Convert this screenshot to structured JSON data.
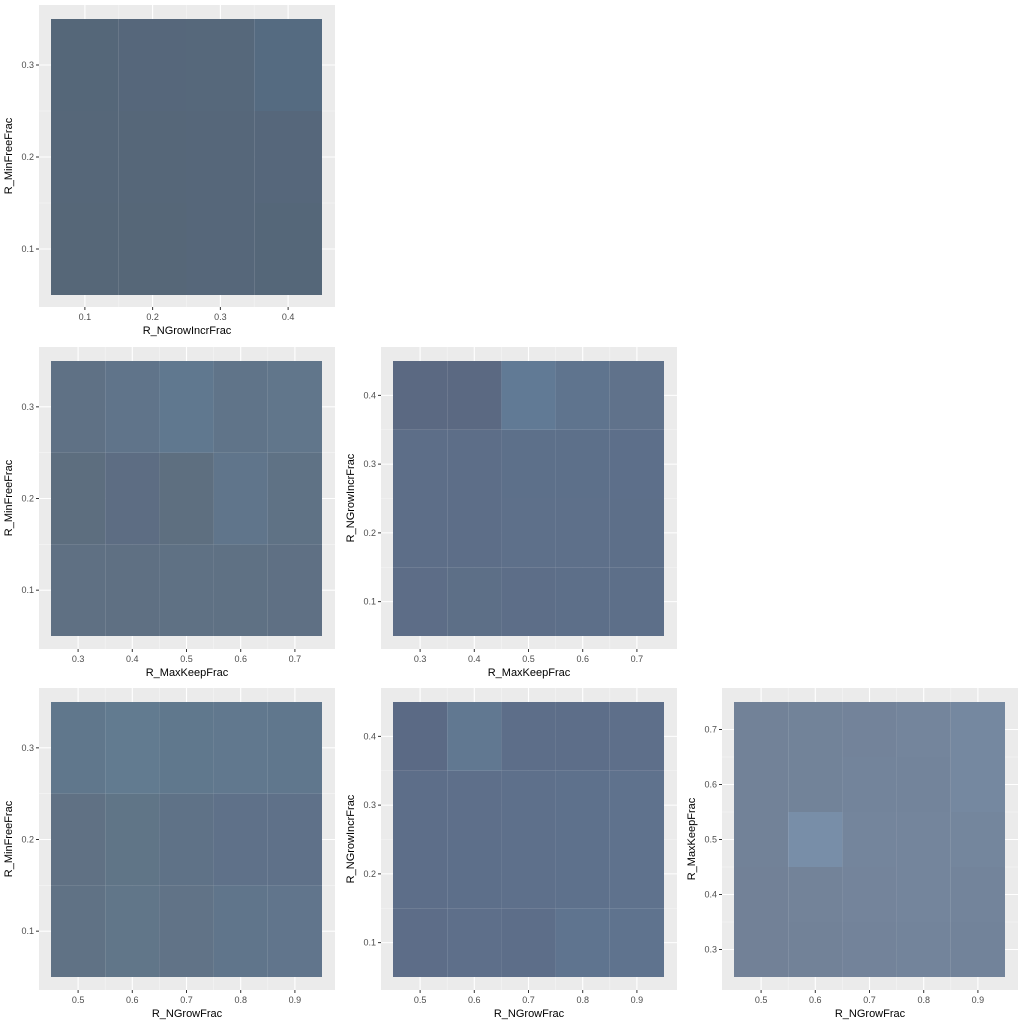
{
  "chart_data": [
    {
      "type": "heatmap",
      "xlabel": "R_NGrowIncrFrac",
      "ylabel": "R_MinFreeFrac",
      "xlim": [
        0.05,
        0.45
      ],
      "ylim": [
        0.05,
        0.35
      ],
      "x_ticks": [
        "0.1",
        "0.2",
        "0.3",
        "0.4"
      ],
      "y_ticks": [
        "0.1",
        "0.2",
        "0.3"
      ],
      "x_centers": [
        0.1,
        0.2,
        0.3,
        0.4
      ],
      "y_centers": [
        0.1,
        0.2,
        0.3
      ],
      "cell_width": 0.1,
      "cell_height": 0.1,
      "colors": [
        [
          "#4f6173",
          "#4f6173",
          "#4f6175",
          "#4e6174"
        ],
        [
          "#4f6174",
          "#4f6174",
          "#4f6175",
          "#4f6176"
        ],
        [
          "#4e6174",
          "#4f6176",
          "#4f6276",
          "#4e657c"
        ]
      ]
    },
    {
      "type": "heatmap",
      "xlabel": "R_MaxKeepFrac",
      "ylabel": "R_MinFreeFrac",
      "xlim": [
        0.25,
        0.75
      ],
      "ylim": [
        0.05,
        0.35
      ],
      "x_ticks": [
        "0.3",
        "0.4",
        "0.5",
        "0.6",
        "0.7"
      ],
      "y_ticks": [
        "0.1",
        "0.2",
        "0.3"
      ],
      "x_centers": [
        0.3,
        0.4,
        0.5,
        0.6,
        0.7
      ],
      "y_centers": [
        0.1,
        0.2,
        0.3
      ],
      "cell_width": 0.1,
      "cell_height": 0.1,
      "colors": [
        [
          "#586a7e",
          "#586a7e",
          "#586b7f",
          "#586b7f",
          "#586a7f"
        ],
        [
          "#56687a",
          "#56677e",
          "#57697b",
          "#5a6f86",
          "#586c80"
        ],
        [
          "#586b80",
          "#596e85",
          "#5a728a",
          "#5a6e84",
          "#5b7086"
        ]
      ]
    },
    {
      "type": "heatmap",
      "xlabel": "R_MaxKeepFrac",
      "ylabel": "R_NGrowIncrFrac",
      "xlim": [
        0.25,
        0.75
      ],
      "ylim": [
        0.05,
        0.45
      ],
      "x_ticks": [
        "0.3",
        "0.4",
        "0.5",
        "0.6",
        "0.7"
      ],
      "y_ticks": [
        "0.1",
        "0.2",
        "0.3",
        "0.4"
      ],
      "x_centers": [
        0.3,
        0.4,
        0.5,
        0.6,
        0.7
      ],
      "y_centers": [
        0.1,
        0.2,
        0.3,
        0.4
      ],
      "cell_width": 0.1,
      "cell_height": 0.1,
      "colors": [
        [
          "#566782",
          "#566982",
          "#566883",
          "#566984",
          "#566984"
        ],
        [
          "#566883",
          "#566883",
          "#576a85",
          "#576a85",
          "#566984"
        ],
        [
          "#566883",
          "#566883",
          "#566a85",
          "#566a85",
          "#566985"
        ],
        [
          "#54637d",
          "#54637d",
          "#5b7591",
          "#586e89",
          "#5a6c86"
        ]
      ]
    },
    {
      "type": "heatmap",
      "xlabel": "R_NGrowFrac",
      "ylabel": "R_MinFreeFrac",
      "xlim": [
        0.45,
        0.95
      ],
      "ylim": [
        0.05,
        0.35
      ],
      "x_ticks": [
        "0.5",
        "0.6",
        "0.7",
        "0.8",
        "0.9"
      ],
      "y_ticks": [
        "0.1",
        "0.2",
        "0.3"
      ],
      "x_centers": [
        0.5,
        0.6,
        0.7,
        0.8,
        0.9
      ],
      "y_centers": [
        0.1,
        0.2,
        0.3
      ],
      "cell_width": 0.1,
      "cell_height": 0.1,
      "colors": [
        [
          "#596c80",
          "#5b7084",
          "#5b6d82",
          "#5a6f86",
          "#5b6f87"
        ],
        [
          "#596b7f",
          "#5a6f82",
          "#586c82",
          "#586b84",
          "#586b84"
        ],
        [
          "#5a7187",
          "#5c768b",
          "#5a7388",
          "#5b7289",
          "#5a7188"
        ]
      ]
    },
    {
      "type": "heatmap",
      "xlabel": "R_NGrowFrac",
      "ylabel": "R_NGrowIncrFrac",
      "xlim": [
        0.45,
        0.95
      ],
      "ylim": [
        0.05,
        0.45
      ],
      "x_ticks": [
        "0.5",
        "0.6",
        "0.7",
        "0.8",
        "0.9"
      ],
      "y_ticks": [
        "0.1",
        "0.2",
        "0.3",
        "0.4"
      ],
      "x_centers": [
        0.5,
        0.6,
        0.7,
        0.8,
        0.9
      ],
      "y_centers": [
        0.1,
        0.2,
        0.3,
        0.4
      ],
      "cell_width": 0.1,
      "cell_height": 0.1,
      "colors": [
        [
          "#566783",
          "#576985",
          "#566884",
          "#586e8a",
          "#586d89"
        ],
        [
          "#566884",
          "#566985",
          "#576a86",
          "#576b87",
          "#586c88"
        ],
        [
          "#566884",
          "#576985",
          "#576a86",
          "#576b87",
          "#586c88"
        ],
        [
          "#546480",
          "#5b728d",
          "#566884",
          "#566884",
          "#576985"
        ]
      ]
    },
    {
      "type": "heatmap",
      "xlabel": "R_NGrowFrac",
      "ylabel": "R_MaxKeepFrac",
      "xlim": [
        0.45,
        0.95
      ],
      "ylim": [
        0.25,
        0.75
      ],
      "x_ticks": [
        "0.5",
        "0.6",
        "0.7",
        "0.8",
        "0.9"
      ],
      "y_ticks": [
        "0.3",
        "0.4",
        "0.5",
        "0.6",
        "0.7"
      ],
      "x_centers": [
        0.5,
        0.6,
        0.7,
        0.8,
        0.9
      ],
      "y_centers": [
        0.3,
        0.4,
        0.5,
        0.6,
        0.7
      ],
      "cell_width": 0.1,
      "cell_height": 0.1,
      "colors": [
        [
          "#6c7c93",
          "#6c7d94",
          "#6d7e96",
          "#6d7f97",
          "#6c7e96"
        ],
        [
          "#6c7c93",
          "#6d7e95",
          "#6e7f97",
          "#6e8098",
          "#6d7f97"
        ],
        [
          "#6c7d94",
          "#7389a4",
          "#6e8098",
          "#6e8098",
          "#6e8199"
        ],
        [
          "#6c7d94",
          "#6c7e95",
          "#6d7f97",
          "#6d7f97",
          "#6f839c"
        ],
        [
          "#6c7d94",
          "#6c7e95",
          "#6d7e96",
          "#6e8098",
          "#6f839c"
        ]
      ]
    }
  ]
}
